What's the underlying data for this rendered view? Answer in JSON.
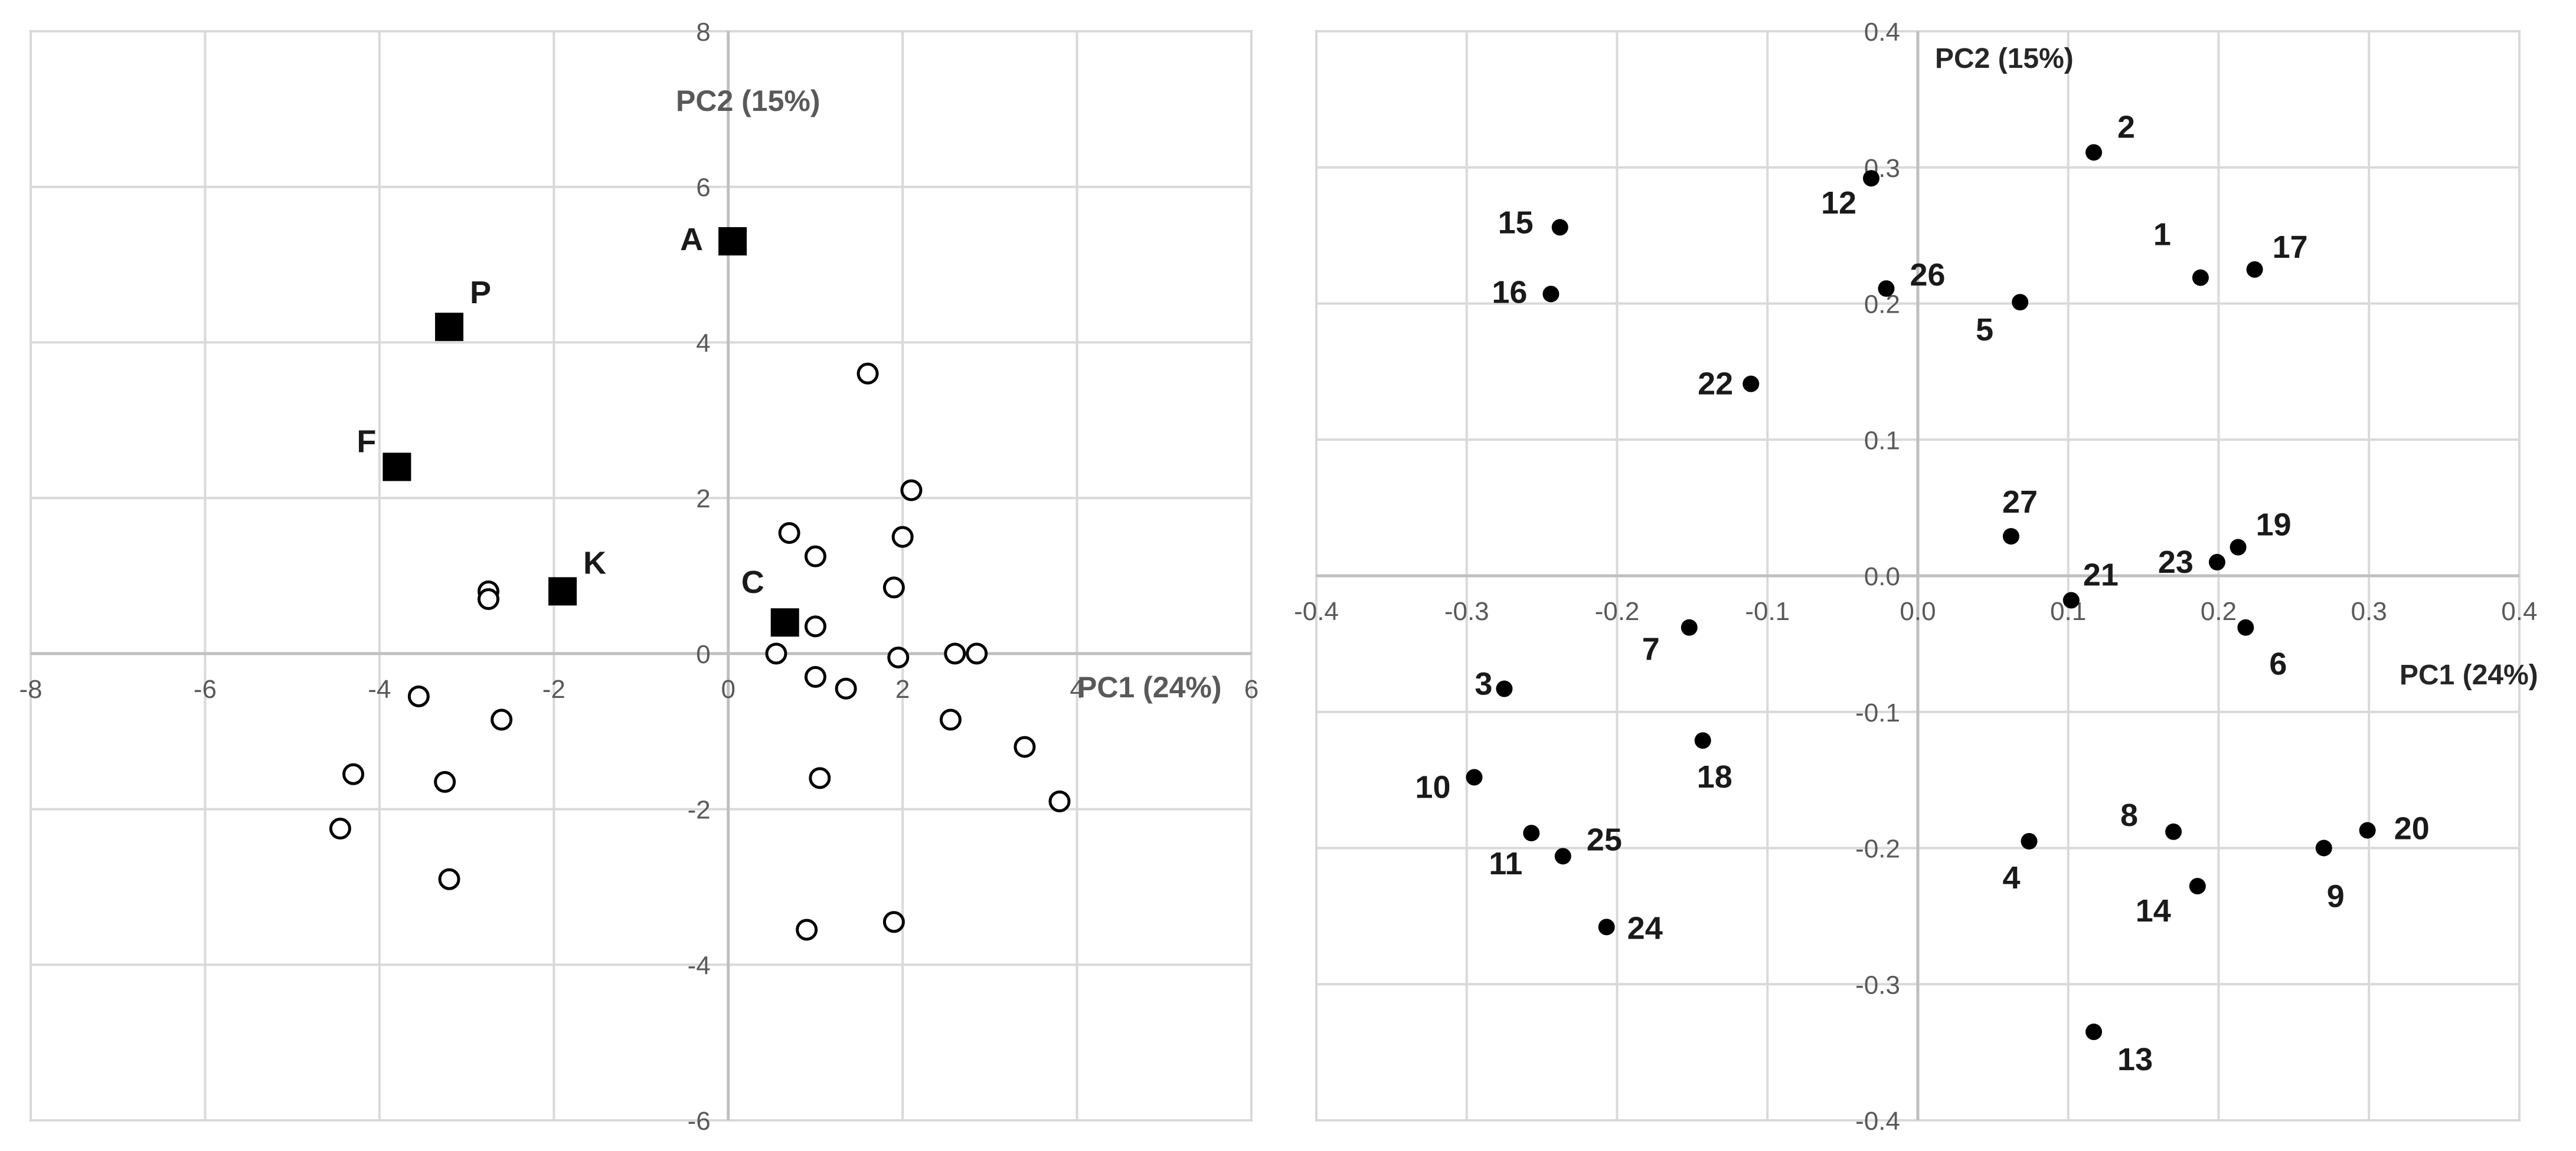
{
  "chart_data": [
    {
      "type": "scatter",
      "title": "",
      "xlabel": "PC1 (24%)",
      "ylabel": "PC2 (15%)",
      "xlim": [
        -8,
        6
      ],
      "ylim": [
        -6,
        8
      ],
      "x_ticks": [
        "-8",
        "-6",
        "-4",
        "-2",
        "0",
        "2",
        "4",
        "6"
      ],
      "y_ticks": [
        "-6",
        "-4",
        "-2",
        "0",
        "2",
        "4",
        "6",
        "8"
      ],
      "x_tick_values": [
        -8,
        -6,
        -4,
        -2,
        0,
        2,
        4,
        6
      ],
      "y_tick_values": [
        -6,
        -4,
        -2,
        0,
        2,
        4,
        6,
        8
      ],
      "grid": true,
      "legend": "none",
      "series": [
        {
          "marker": "open-circle",
          "points": [
            {
              "x": 1.6,
              "y": 3.6
            },
            {
              "x": 2.1,
              "y": 2.1
            },
            {
              "x": 0.7,
              "y": 1.55
            },
            {
              "x": 1.0,
              "y": 1.25
            },
            {
              "x": 2.0,
              "y": 1.5
            },
            {
              "x": 1.9,
              "y": 0.85
            },
            {
              "x": 1.0,
              "y": 0.35
            },
            {
              "x": 0.55,
              "y": 0.0
            },
            {
              "x": 1.95,
              "y": -0.05
            },
            {
              "x": 2.6,
              "y": 0.0
            },
            {
              "x": 2.85,
              "y": 0.0
            },
            {
              "x": 1.0,
              "y": -0.3
            },
            {
              "x": 1.35,
              "y": -0.45
            },
            {
              "x": 2.55,
              "y": -0.85
            },
            {
              "x": 3.4,
              "y": -1.2
            },
            {
              "x": 1.05,
              "y": -1.6
            },
            {
              "x": 3.8,
              "y": -1.9
            },
            {
              "x": 0.9,
              "y": -3.55
            },
            {
              "x": 1.9,
              "y": -3.45
            },
            {
              "x": -2.75,
              "y": 0.8
            },
            {
              "x": -2.75,
              "y": 0.7
            },
            {
              "x": -3.55,
              "y": -0.55
            },
            {
              "x": -2.6,
              "y": -0.85
            },
            {
              "x": -4.3,
              "y": -1.55
            },
            {
              "x": -3.25,
              "y": -1.65
            },
            {
              "x": -4.45,
              "y": -2.25
            },
            {
              "x": -3.2,
              "y": -2.9
            }
          ]
        },
        {
          "marker": "filled-square",
          "points": [
            {
              "x": 0.05,
              "y": 5.3,
              "label": "A"
            },
            {
              "x": -3.2,
              "y": 4.2,
              "label": "P"
            },
            {
              "x": -3.8,
              "y": 2.4,
              "label": "F"
            },
            {
              "x": -1.9,
              "y": 0.8,
              "label": "K"
            },
            {
              "x": 0.65,
              "y": 0.4,
              "label": "C"
            }
          ]
        }
      ]
    },
    {
      "type": "scatter",
      "title": "",
      "xlabel": "PC1 (24%)",
      "ylabel": "PC2 (15%)",
      "xlim": [
        -0.4,
        0.4
      ],
      "ylim": [
        -0.4,
        0.4
      ],
      "x_ticks": [
        "-0.4",
        "-0.3",
        "-0.2",
        "-0.1",
        "0.0",
        "0.1",
        "0.2",
        "0.3",
        "0.4"
      ],
      "y_ticks": [
        "-0.4",
        "-0.3",
        "-0.2",
        "-0.1",
        "0.0",
        "0.1",
        "0.2",
        "0.3",
        "0.4"
      ],
      "x_tick_values": [
        -0.4,
        -0.3,
        -0.2,
        -0.1,
        0.0,
        0.1,
        0.2,
        0.3,
        0.4
      ],
      "y_tick_values": [
        -0.4,
        -0.3,
        -0.2,
        -0.1,
        0.0,
        0.1,
        0.2,
        0.3,
        0.4
      ],
      "grid": true,
      "legend": "none",
      "series": [
        {
          "marker": "filled-circle",
          "points": [
            {
              "label": "1",
              "x": 0.188,
              "y": 0.219
            },
            {
              "label": "2",
              "x": 0.117,
              "y": 0.311
            },
            {
              "label": "3",
              "x": -0.275,
              "y": -0.083
            },
            {
              "label": "4",
              "x": 0.074,
              "y": -0.195
            },
            {
              "label": "5",
              "x": 0.068,
              "y": 0.201
            },
            {
              "label": "6",
              "x": 0.218,
              "y": -0.038
            },
            {
              "label": "7",
              "x": -0.152,
              "y": -0.038
            },
            {
              "label": "8",
              "x": 0.17,
              "y": -0.188
            },
            {
              "label": "9",
              "x": 0.27,
              "y": -0.2
            },
            {
              "label": "10",
              "x": -0.295,
              "y": -0.148
            },
            {
              "label": "11",
              "x": -0.257,
              "y": -0.189
            },
            {
              "label": "12",
              "x": -0.031,
              "y": 0.292
            },
            {
              "label": "13",
              "x": 0.117,
              "y": -0.335
            },
            {
              "label": "14",
              "x": 0.186,
              "y": -0.228
            },
            {
              "label": "15",
              "x": -0.238,
              "y": 0.256
            },
            {
              "label": "16",
              "x": -0.244,
              "y": 0.207
            },
            {
              "label": "17",
              "x": 0.224,
              "y": 0.225
            },
            {
              "label": "18",
              "x": -0.143,
              "y": -0.121
            },
            {
              "label": "19",
              "x": 0.213,
              "y": 0.021
            },
            {
              "label": "20",
              "x": 0.299,
              "y": -0.187
            },
            {
              "label": "21",
              "x": 0.102,
              "y": -0.018
            },
            {
              "label": "22",
              "x": -0.111,
              "y": 0.141
            },
            {
              "label": "23",
              "x": 0.199,
              "y": 0.01
            },
            {
              "label": "24",
              "x": -0.207,
              "y": -0.258
            },
            {
              "label": "25",
              "x": -0.236,
              "y": -0.206
            },
            {
              "label": "26",
              "x": -0.021,
              "y": 0.211
            },
            {
              "label": "27",
              "x": 0.062,
              "y": 0.029
            }
          ]
        }
      ]
    }
  ]
}
